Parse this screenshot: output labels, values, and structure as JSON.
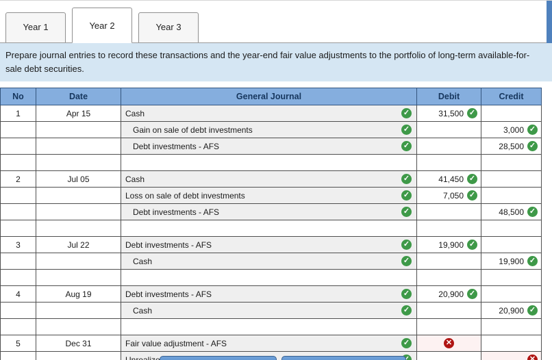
{
  "tabs": [
    {
      "label": "Year 1",
      "active": false
    },
    {
      "label": "Year 2",
      "active": true
    },
    {
      "label": "Year 3",
      "active": false
    }
  ],
  "instruction": "Prepare journal entries to record these transactions and the year-end fair value adjustments to the portfolio of long-term available-for-sale debt securities.",
  "icons": {
    "check": "✓",
    "cross": "✕"
  },
  "colors": {
    "header_bg": "#85aede",
    "header_text": "#17375e",
    "instruction_bg": "#d5e6f3",
    "success_green": "#3e9948",
    "error_red": "#b01513",
    "error_cell_bg": "#fdf2f2",
    "journal_cell_bg": "#efefef",
    "button_blue": "#4f86c6",
    "edge_blue": "#4f81bd"
  },
  "table": {
    "headers": {
      "no": "No",
      "date": "Date",
      "journal": "General Journal",
      "debit": "Debit",
      "credit": "Credit"
    },
    "rows": [
      {
        "no": "1",
        "date": "Apr 15",
        "account": "Cash",
        "indent": false,
        "acct": "ok",
        "debit": "31,500",
        "debit_s": "ok",
        "credit": "",
        "credit_s": ""
      },
      {
        "no": "",
        "date": "",
        "account": "Gain on sale of debt investments",
        "indent": true,
        "acct": "ok",
        "debit": "",
        "debit_s": "",
        "credit": "3,000",
        "credit_s": "ok"
      },
      {
        "no": "",
        "date": "",
        "account": "Debt investments - AFS",
        "indent": true,
        "acct": "ok",
        "debit": "",
        "debit_s": "",
        "credit": "28,500",
        "credit_s": "ok"
      },
      {
        "blank": true
      },
      {
        "no": "2",
        "date": "Jul 05",
        "account": "Cash",
        "indent": false,
        "acct": "ok",
        "debit": "41,450",
        "debit_s": "ok",
        "credit": "",
        "credit_s": ""
      },
      {
        "no": "",
        "date": "",
        "account": "Loss on sale of debt investments",
        "indent": false,
        "acct": "ok",
        "debit": "7,050",
        "debit_s": "ok",
        "credit": "",
        "credit_s": ""
      },
      {
        "no": "",
        "date": "",
        "account": "Debt investments - AFS",
        "indent": true,
        "acct": "ok",
        "debit": "",
        "debit_s": "",
        "credit": "48,500",
        "credit_s": "ok"
      },
      {
        "blank": true
      },
      {
        "no": "3",
        "date": "Jul 22",
        "account": "Debt investments - AFS",
        "indent": false,
        "acct": "ok",
        "debit": "19,900",
        "debit_s": "ok",
        "credit": "",
        "credit_s": ""
      },
      {
        "no": "",
        "date": "",
        "account": "Cash",
        "indent": true,
        "acct": "ok",
        "debit": "",
        "debit_s": "",
        "credit": "19,900",
        "credit_s": "ok"
      },
      {
        "blank": true
      },
      {
        "no": "4",
        "date": "Aug 19",
        "account": "Debt investments - AFS",
        "indent": false,
        "acct": "ok",
        "debit": "20,900",
        "debit_s": "ok",
        "credit": "",
        "credit_s": ""
      },
      {
        "no": "",
        "date": "",
        "account": "Cash",
        "indent": true,
        "acct": "ok",
        "debit": "",
        "debit_s": "",
        "credit": "20,900",
        "credit_s": "ok"
      },
      {
        "blank": true
      },
      {
        "no": "5",
        "date": "Dec 31",
        "account": "Fair value adjustment - AFS",
        "indent": false,
        "acct": "ok",
        "debit": "",
        "debit_s": "err",
        "credit": "",
        "credit_s": ""
      },
      {
        "no": "",
        "date": "",
        "account": "Unrealized gain - Equity",
        "indent": false,
        "acct": "ok",
        "debit": "",
        "debit_s": "",
        "credit": "",
        "credit_s": "err"
      }
    ]
  }
}
